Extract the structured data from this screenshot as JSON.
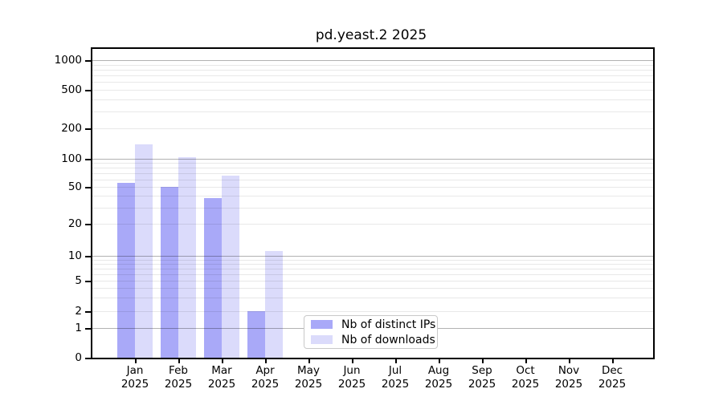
{
  "chart_data": {
    "type": "bar",
    "title": "pd.yeast.2 2025",
    "xlabel": "",
    "ylabel": "",
    "y_scale": "symlog",
    "ylim": [
      0,
      1000
    ],
    "grid": "horizontal, log minors, drawn over bars",
    "legend_position": "inside plot, lower center",
    "y_ticks": [
      "0",
      "1",
      "2",
      "5",
      "10",
      "20",
      "50",
      "100",
      "200",
      "500",
      "1000"
    ],
    "categories": [
      {
        "label": "Jan",
        "year": "2025"
      },
      {
        "label": "Feb",
        "year": "2025"
      },
      {
        "label": "Mar",
        "year": "2025"
      },
      {
        "label": "Apr",
        "year": "2025"
      },
      {
        "label": "May",
        "year": "2025"
      },
      {
        "label": "Jun",
        "year": "2025"
      },
      {
        "label": "Jul",
        "year": "2025"
      },
      {
        "label": "Aug",
        "year": "2025"
      },
      {
        "label": "Sep",
        "year": "2025"
      },
      {
        "label": "Oct",
        "year": "2025"
      },
      {
        "label": "Nov",
        "year": "2025"
      },
      {
        "label": "Dec",
        "year": "2025"
      }
    ],
    "series": [
      {
        "name": "Nb of distinct IPs",
        "color": "#a9a9f8",
        "values": [
          55,
          50,
          38,
          2,
          0,
          0,
          0,
          0,
          0,
          0,
          0,
          0
        ]
      },
      {
        "name": "Nb of downloads",
        "color": "#dbdbfb",
        "values": [
          140,
          104,
          66,
          11,
          0,
          0,
          0,
          0,
          0,
          0,
          0,
          0
        ]
      }
    ]
  }
}
